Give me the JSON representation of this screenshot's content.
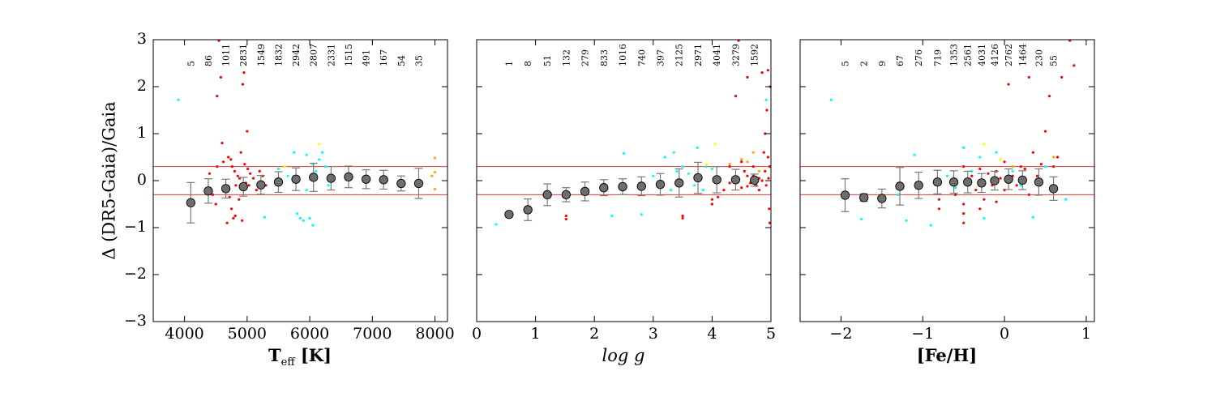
{
  "figure": {
    "ylabel": "Δ (DR5-Gaia)/Gaia",
    "y_tick_labels": [
      "3",
      "2",
      "1",
      "0",
      "−1",
      "−2",
      "−3"
    ]
  },
  "chart_data": [
    {
      "type": "scatter",
      "panel": "teff",
      "xlabel_main": "T",
      "xlabel_sub": "eff",
      "xlabel_unit": " [K]",
      "xlim": [
        3500,
        8200
      ],
      "ylim": [
        -3,
        3
      ],
      "x_ticks": [
        4000,
        5000,
        6000,
        7000,
        8000
      ],
      "x_tick_labels": [
        "4000",
        "5000",
        "6000",
        "7000",
        "8000"
      ],
      "reference_lines": [
        0.3,
        -0.3
      ],
      "binned": [
        {
          "x": 4100,
          "y": -0.47,
          "err": 0.43,
          "n": "5"
        },
        {
          "x": 4380,
          "y": -0.22,
          "err": 0.26,
          "n": "86"
        },
        {
          "x": 4660,
          "y": -0.17,
          "err": 0.2,
          "n": "1011"
        },
        {
          "x": 4940,
          "y": -0.13,
          "err": 0.2,
          "n": "2831"
        },
        {
          "x": 5220,
          "y": -0.09,
          "err": 0.2,
          "n": "1549"
        },
        {
          "x": 5500,
          "y": -0.03,
          "err": 0.22,
          "n": "1832"
        },
        {
          "x": 5780,
          "y": 0.03,
          "err": 0.24,
          "n": "2942"
        },
        {
          "x": 6060,
          "y": 0.07,
          "err": 0.3,
          "n": "2807"
        },
        {
          "x": 6340,
          "y": 0.05,
          "err": 0.25,
          "n": "2331"
        },
        {
          "x": 6620,
          "y": 0.08,
          "err": 0.23,
          "n": "1515"
        },
        {
          "x": 6900,
          "y": 0.03,
          "err": 0.2,
          "n": "491"
        },
        {
          "x": 7180,
          "y": 0.02,
          "err": 0.2,
          "n": "167"
        },
        {
          "x": 7460,
          "y": -0.06,
          "err": 0.16,
          "n": "54"
        },
        {
          "x": 7740,
          "y": -0.06,
          "err": 0.32,
          "n": "35"
        }
      ],
      "outliers": {
        "red": [
          [
            4400,
            0.15
          ],
          [
            4450,
            -0.3
          ],
          [
            4500,
            -0.5
          ],
          [
            4520,
            0.3
          ],
          [
            4550,
            2.98
          ],
          [
            4580,
            2.2
          ],
          [
            4520,
            1.8
          ],
          [
            4600,
            0.8
          ],
          [
            4620,
            0.4
          ],
          [
            4650,
            -0.2
          ],
          [
            4700,
            0.5
          ],
          [
            4720,
            -0.35
          ],
          [
            4750,
            -0.6
          ],
          [
            4760,
            0.3
          ],
          [
            4780,
            -0.8
          ],
          [
            4800,
            0.2
          ],
          [
            4820,
            -0.1
          ],
          [
            4850,
            0.1
          ],
          [
            4870,
            -0.4
          ],
          [
            4900,
            0.6
          ],
          [
            4920,
            -0.85
          ],
          [
            4930,
            2.05
          ],
          [
            4950,
            2.3
          ],
          [
            4960,
            0.35
          ],
          [
            4980,
            -0.05
          ],
          [
            5000,
            1.05
          ],
          [
            5010,
            0.25
          ],
          [
            5030,
            -0.1
          ],
          [
            5050,
            0.15
          ],
          [
            5100,
            0.05
          ],
          [
            5150,
            -0.2
          ],
          [
            5200,
            0.2
          ],
          [
            5250,
            0.1
          ],
          [
            5300,
            -0.1
          ],
          [
            4680,
            -0.9
          ],
          [
            4740,
            0.45
          ],
          [
            4810,
            -0.75
          ],
          [
            4880,
            0.05
          ]
        ],
        "cyan": [
          [
            3900,
            1.72
          ],
          [
            5280,
            -0.78
          ],
          [
            5500,
            0.25
          ],
          [
            5650,
            0.1
          ],
          [
            5750,
            0.6
          ],
          [
            5800,
            -0.7
          ],
          [
            5850,
            -0.8
          ],
          [
            5900,
            -0.85
          ],
          [
            5950,
            0.55
          ],
          [
            6000,
            -0.8
          ],
          [
            6050,
            0.35
          ],
          [
            6100,
            0.2
          ],
          [
            6150,
            0.45
          ],
          [
            6200,
            0.6
          ],
          [
            6250,
            0.3
          ],
          [
            6300,
            -0.1
          ],
          [
            6050,
            -0.95
          ],
          [
            5950,
            -0.2
          ]
        ],
        "yellow": [
          [
            6150,
            0.78
          ],
          [
            5600,
            0.3
          ]
        ],
        "orange": [
          [
            8000,
            0.48
          ],
          [
            8000,
            0.18
          ],
          [
            8000,
            -0.18
          ],
          [
            7950,
            0.1
          ]
        ]
      }
    },
    {
      "type": "scatter",
      "panel": "logg",
      "xlabel_main": "log g",
      "xlim": [
        0,
        5
      ],
      "ylim": [
        -3,
        3
      ],
      "x_ticks": [
        0,
        1,
        2,
        3,
        4,
        5
      ],
      "x_tick_labels": [
        "0",
        "1",
        "2",
        "3",
        "4",
        "5"
      ],
      "reference_lines": [
        0.3,
        -0.3
      ],
      "binned": [
        {
          "x": 0.55,
          "y": -0.72,
          "err": 0.0,
          "n": "1"
        },
        {
          "x": 0.87,
          "y": -0.62,
          "err": 0.23,
          "n": "8"
        },
        {
          "x": 1.2,
          "y": -0.3,
          "err": 0.23,
          "n": "51"
        },
        {
          "x": 1.52,
          "y": -0.3,
          "err": 0.15,
          "n": "132"
        },
        {
          "x": 1.84,
          "y": -0.23,
          "err": 0.2,
          "n": "279"
        },
        {
          "x": 2.16,
          "y": -0.15,
          "err": 0.17,
          "n": "833"
        },
        {
          "x": 2.48,
          "y": -0.13,
          "err": 0.17,
          "n": "1016"
        },
        {
          "x": 2.8,
          "y": -0.12,
          "err": 0.2,
          "n": "740"
        },
        {
          "x": 3.12,
          "y": -0.08,
          "err": 0.23,
          "n": "397"
        },
        {
          "x": 3.44,
          "y": -0.05,
          "err": 0.3,
          "n": "2125"
        },
        {
          "x": 3.76,
          "y": 0.06,
          "err": 0.33,
          "n": "2971"
        },
        {
          "x": 4.08,
          "y": 0.02,
          "err": 0.28,
          "n": "4041"
        },
        {
          "x": 4.4,
          "y": 0.02,
          "err": 0.22,
          "n": "3279"
        },
        {
          "x": 4.72,
          "y": 0.01,
          "err": 0.13,
          "n": "1592"
        }
      ],
      "outliers": {
        "red": [
          [
            1.52,
            -0.75
          ],
          [
            1.52,
            -0.82
          ],
          [
            3.5,
            -0.75
          ],
          [
            3.5,
            -0.8
          ],
          [
            4.0,
            -0.5
          ],
          [
            4.0,
            -0.4
          ],
          [
            4.1,
            -0.35
          ],
          [
            4.2,
            -0.2
          ],
          [
            4.3,
            0.3
          ],
          [
            4.4,
            1.8
          ],
          [
            4.45,
            2.98
          ],
          [
            4.5,
            0.4
          ],
          [
            4.55,
            0.2
          ],
          [
            4.6,
            0.1
          ],
          [
            4.65,
            -0.05
          ],
          [
            4.7,
            0.1
          ],
          [
            4.75,
            -0.1
          ],
          [
            4.8,
            0.05
          ],
          [
            4.85,
            2.3
          ],
          [
            4.9,
            1.0
          ],
          [
            4.9,
            0.2
          ],
          [
            4.92,
            -0.1
          ],
          [
            4.95,
            2.35
          ],
          [
            4.95,
            0.5
          ],
          [
            4.97,
            -0.6
          ],
          [
            4.98,
            -0.9
          ],
          [
            4.98,
            0.3
          ],
          [
            4.99,
            2.0
          ],
          [
            4.6,
            2.2
          ],
          [
            4.7,
            0.3
          ],
          [
            4.8,
            -0.2
          ],
          [
            4.85,
            0.0
          ],
          [
            4.88,
            0.6
          ],
          [
            4.93,
            1.5
          ],
          [
            4.96,
            0.05
          ],
          [
            4.5,
            -0.15
          ],
          [
            4.3,
            -0.05
          ],
          [
            4.6,
            -0.12
          ]
        ],
        "cyan": [
          [
            0.33,
            -0.93
          ],
          [
            2.3,
            -0.75
          ],
          [
            2.5,
            0.58
          ],
          [
            2.8,
            -0.72
          ],
          [
            3.0,
            0.1
          ],
          [
            3.2,
            0.5
          ],
          [
            3.35,
            0.6
          ],
          [
            3.5,
            0.3
          ],
          [
            3.6,
            0.15
          ],
          [
            3.7,
            -0.1
          ],
          [
            3.8,
            0.1
          ],
          [
            3.9,
            0.3
          ],
          [
            4.0,
            0.25
          ],
          [
            4.92,
            1.72
          ],
          [
            3.4,
            0.2
          ],
          [
            3.3,
            -0.2
          ],
          [
            3.75,
            0.7
          ],
          [
            3.85,
            -0.2
          ]
        ],
        "yellow": [
          [
            4.05,
            0.78
          ],
          [
            3.9,
            0.35
          ]
        ],
        "orange": [
          [
            4.5,
            0.45
          ],
          [
            4.3,
            0.35
          ],
          [
            4.7,
            0.6
          ],
          [
            4.8,
            0.2
          ],
          [
            4.6,
            0.4
          ]
        ]
      }
    },
    {
      "type": "scatter",
      "panel": "feh",
      "xlabel_main": "[Fe/H]",
      "xlim": [
        -2.5,
        1.1
      ],
      "ylim": [
        -3,
        3
      ],
      "x_ticks": [
        -2,
        -1,
        0,
        1
      ],
      "x_tick_labels": [
        "−2",
        "−1",
        "0",
        "1"
      ],
      "reference_lines": [
        0.3,
        -0.3
      ],
      "binned": [
        {
          "x": -1.95,
          "y": -0.31,
          "err": 0.35,
          "n": "5"
        },
        {
          "x": -1.72,
          "y": -0.36,
          "err": 0.08,
          "n": "2"
        },
        {
          "x": -1.5,
          "y": -0.38,
          "err": 0.2,
          "n": "9"
        },
        {
          "x": -1.28,
          "y": -0.12,
          "err": 0.4,
          "n": "67"
        },
        {
          "x": -1.05,
          "y": -0.1,
          "err": 0.28,
          "n": "276"
        },
        {
          "x": -0.82,
          "y": -0.03,
          "err": 0.25,
          "n": "719"
        },
        {
          "x": -0.62,
          "y": -0.03,
          "err": 0.24,
          "n": "1353"
        },
        {
          "x": -0.45,
          "y": -0.03,
          "err": 0.23,
          "n": "2561"
        },
        {
          "x": -0.28,
          "y": -0.05,
          "err": 0.2,
          "n": "4031"
        },
        {
          "x": -0.12,
          "y": 0.0,
          "err": 0.2,
          "n": "4126"
        },
        {
          "x": 0.05,
          "y": 0.03,
          "err": 0.22,
          "n": "2762"
        },
        {
          "x": 0.22,
          "y": 0.01,
          "err": 0.2,
          "n": "1464"
        },
        {
          "x": 0.42,
          "y": -0.03,
          "err": 0.28,
          "n": "230"
        },
        {
          "x": 0.6,
          "y": -0.17,
          "err": 0.25,
          "n": "55"
        }
      ],
      "outliers": {
        "red": [
          [
            -0.8,
            -0.4
          ],
          [
            -0.8,
            -0.6
          ],
          [
            -0.6,
            -0.3
          ],
          [
            -0.5,
            -0.5
          ],
          [
            -0.5,
            -0.7
          ],
          [
            -0.5,
            -0.9
          ],
          [
            -0.5,
            0.3
          ],
          [
            -0.4,
            0.1
          ],
          [
            -0.35,
            -0.2
          ],
          [
            -0.3,
            0.25
          ],
          [
            -0.25,
            -0.4
          ],
          [
            -0.2,
            0.15
          ],
          [
            -0.15,
            -0.1
          ],
          [
            -0.1,
            0.2
          ],
          [
            -0.05,
            0.05
          ],
          [
            0.0,
            -0.2
          ],
          [
            0.05,
            2.05
          ],
          [
            0.1,
            0.1
          ],
          [
            0.15,
            -0.1
          ],
          [
            0.2,
            0.3
          ],
          [
            0.25,
            0.25
          ],
          [
            0.3,
            2.2
          ],
          [
            0.35,
            0.6
          ],
          [
            0.4,
            0.1
          ],
          [
            0.45,
            0.35
          ],
          [
            0.5,
            1.05
          ],
          [
            0.55,
            1.8
          ],
          [
            0.6,
            0.3
          ],
          [
            0.7,
            2.2
          ],
          [
            0.8,
            2.98
          ],
          [
            0.85,
            2.45
          ],
          [
            0.65,
            0.5
          ],
          [
            0.3,
            -0.3
          ],
          [
            0.0,
            0.4
          ],
          [
            -0.1,
            -0.45
          ],
          [
            -0.3,
            -0.6
          ]
        ],
        "cyan": [
          [
            -2.12,
            1.72
          ],
          [
            -1.75,
            -0.82
          ],
          [
            -1.3,
            -0.3
          ],
          [
            -1.2,
            -0.85
          ],
          [
            -1.1,
            0.55
          ],
          [
            -0.9,
            -0.95
          ],
          [
            -0.7,
            0.1
          ],
          [
            -0.5,
            0.7
          ],
          [
            -0.4,
            0.2
          ],
          [
            -0.25,
            -0.8
          ],
          [
            -0.1,
            0.6
          ],
          [
            0.1,
            0.2
          ],
          [
            0.35,
            -0.78
          ],
          [
            0.5,
            0.3
          ],
          [
            0.75,
            -0.4
          ],
          [
            -0.3,
            0.5
          ],
          [
            -0.6,
            -0.15
          ],
          [
            0.2,
            -0.1
          ]
        ],
        "yellow": [
          [
            -0.25,
            0.78
          ],
          [
            -0.05,
            0.45
          ]
        ],
        "orange": [
          [
            0.6,
            0.5
          ],
          [
            0.1,
            0.3
          ]
        ]
      }
    }
  ]
}
